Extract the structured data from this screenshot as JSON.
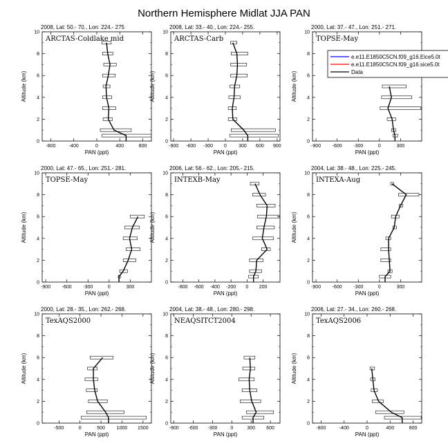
{
  "figure": {
    "title": "Northern Hemisphere Midlat JJA PAN"
  },
  "legend": {
    "entries": [
      {
        "label": "e.e11.E1850C5CN.f09_g16.Eice5.0t",
        "color": "#0000ff"
      },
      {
        "label": "e.e11.E1850C5CN.f09_g16.sice5.0t",
        "color": "#ff0000"
      },
      {
        "label": "Data",
        "color": "#000000"
      }
    ]
  },
  "chart_data": [
    {
      "type": "line",
      "header": "2008, Lat:  50.- 70., Lon: 224.- 275",
      "label": "ARCTAS-Coldlake mid",
      "xlabel": "PAN (ppt)",
      "ylabel": "Altitude (km)",
      "xlim": [
        -950,
        950
      ],
      "ylim": [
        0,
        10
      ],
      "xticks": [
        -800,
        -400,
        0,
        400,
        800
      ],
      "yticks": [
        0,
        2,
        4,
        6,
        8,
        10
      ],
      "altitude": [
        0.5,
        1,
        2,
        3,
        4,
        5,
        6,
        7,
        8,
        9
      ],
      "values": [
        510,
        300,
        200,
        210,
        170,
        160,
        200,
        230,
        190,
        170
      ],
      "range_low": [
        90,
        60,
        110,
        100,
        100,
        110,
        100,
        120,
        100,
        90
      ],
      "range_high": [
        950,
        600,
        270,
        330,
        260,
        230,
        320,
        340,
        280,
        250
      ]
    },
    {
      "type": "line",
      "header": "2008, Lat:  33.- 40., Lon: 224.- 255.",
      "label": "ARCTAS-Carb",
      "xlabel": "PAN (ppt)",
      "ylabel": "Altitude (km)",
      "xlim": [
        -950,
        950
      ],
      "ylim": [
        0,
        10
      ],
      "xticks": [
        -900,
        -600,
        -300,
        0,
        300,
        600,
        900
      ],
      "yticks": [
        0,
        2,
        4,
        6,
        8,
        10
      ],
      "altitude": [
        0.5,
        1,
        2,
        3,
        4,
        5,
        6,
        7,
        8,
        9
      ],
      "values": [
        390,
        320,
        130,
        120,
        150,
        160,
        200,
        210,
        200,
        130
      ],
      "range_low": [
        80,
        100,
        50,
        50,
        60,
        80,
        90,
        90,
        100,
        90
      ],
      "range_high": [
        920,
        870,
        200,
        190,
        260,
        250,
        380,
        370,
        390,
        200
      ]
    },
    {
      "type": "line",
      "header": "2000, Lat: 37.- 47., Lon: 251.- 271.",
      "label": "TOPSE-May",
      "xlabel": "PAN (ppt)",
      "ylabel": "Altitude (km)",
      "xlim": [
        -950,
        600
      ],
      "ylim": [
        0,
        10
      ],
      "xticks": [
        -900,
        -600,
        -300,
        0,
        300
      ],
      "yticks": [
        0,
        2,
        4,
        6,
        8,
        10
      ],
      "altitude": [
        0.5,
        1,
        2,
        3,
        4,
        5
      ],
      "values": [
        220,
        200,
        180,
        120,
        170,
        140
      ],
      "range_low": [
        190,
        170,
        110,
        10,
        30,
        40
      ],
      "range_high": [
        260,
        230,
        230,
        590,
        460,
        380
      ]
    },
    {
      "type": "line",
      "header": "2000, Lat: 47.- 65., Lon: 251.- 281.",
      "label": "TOPSE-May",
      "xlabel": "PAN (ppt)",
      "ylabel": "Altitude (km)",
      "xlim": [
        -950,
        600
      ],
      "ylim": [
        0,
        10
      ],
      "xticks": [
        -900,
        -600,
        -300,
        0,
        300
      ],
      "yticks": [
        0,
        2,
        4,
        6,
        8,
        10
      ],
      "altitude": [
        0.5,
        1,
        2,
        3,
        4,
        5,
        6
      ],
      "values": [
        140,
        200,
        270,
        320,
        290,
        330,
        410
      ],
      "range_low": [
        130,
        150,
        200,
        240,
        200,
        220,
        300
      ],
      "range_high": [
        160,
        260,
        380,
        440,
        400,
        430,
        500
      ]
    },
    {
      "type": "line",
      "header": "2006, Lat: 56.- 62., Lon: 205.- 215.",
      "label": "INTEXB-May",
      "xlabel": "PAN (ppt)",
      "ylabel": "Altitude (km)",
      "xlim": [
        -950,
        410
      ],
      "ylim": [
        0,
        10
      ],
      "xticks": [
        -800,
        -600,
        -400,
        -200,
        0,
        200
      ],
      "yticks": [
        0,
        2,
        4,
        6,
        8,
        10
      ],
      "altitude": [
        0.5,
        1,
        2,
        3,
        4,
        5,
        6,
        7,
        8,
        9
      ],
      "values": [
        80,
        110,
        120,
        250,
        190,
        210,
        240,
        250,
        160,
        100
      ],
      "range_low": [
        20,
        30,
        30,
        180,
        70,
        120,
        130,
        120,
        70,
        40
      ],
      "range_high": [
        140,
        180,
        200,
        290,
        330,
        340,
        400,
        350,
        230,
        150
      ]
    },
    {
      "type": "line",
      "header": "2004, Lat: 38.- 48., Lon: 225.- 245.",
      "label": "INTEXA-Aug",
      "xlabel": "PAN (ppt)",
      "ylabel": "Altitude (km)",
      "xlim": [
        -950,
        600
      ],
      "ylim": [
        0,
        10
      ],
      "xticks": [
        -900,
        -600,
        -300,
        0,
        300
      ],
      "yticks": [
        0,
        2,
        4,
        6,
        8,
        10
      ],
      "altitude": [
        0.5,
        1,
        2,
        3,
        4,
        5,
        6,
        7,
        8,
        9
      ],
      "values": [
        80,
        150,
        140,
        130,
        130,
        210,
        230,
        300,
        380,
        180
      ],
      "range_low": [
        0,
        120,
        20,
        20,
        90,
        190,
        170,
        280,
        270,
        160
      ],
      "range_high": [
        160,
        180,
        160,
        160,
        160,
        240,
        280,
        330,
        560,
        200
      ]
    },
    {
      "type": "line",
      "header": "2000, Lat: 28.- 35., Lon: 262.- 268.",
      "label": "TexAQS2000",
      "xlabel": "PAN (ppt)",
      "ylabel": "Altitude (km)",
      "xlim": [
        -900,
        1700
      ],
      "ylim": [
        0,
        10
      ],
      "xticks": [
        -500,
        0,
        500,
        1000,
        1500
      ],
      "yticks": [
        0,
        2,
        4,
        6,
        8,
        10
      ],
      "altitude": [
        0.5,
        1,
        2,
        3,
        4,
        5,
        6
      ],
      "values": [
        680,
        610,
        420,
        350,
        320,
        320,
        540
      ],
      "range_low": [
        30,
        160,
        200,
        150,
        120,
        180,
        240
      ],
      "range_high": [
        1580,
        1050,
        650,
        410,
        420,
        410,
        790
      ]
    },
    {
      "type": "line",
      "header": "2004, Lat: 38.- 48., Lon: 280.- 298.",
      "label": "NEAQSITCT2004",
      "xlabel": "PAN (ppt)",
      "ylabel": "Altitude (km)",
      "xlim": [
        -950,
        750
      ],
      "ylim": [
        0,
        10
      ],
      "xticks": [
        -900,
        -600,
        -300,
        0,
        300,
        600
      ],
      "yticks": [
        0,
        2,
        4,
        6,
        8,
        10
      ],
      "altitude": [
        0.5,
        1,
        2,
        3,
        4,
        5,
        6
      ],
      "values": [
        330,
        380,
        310,
        280,
        270,
        290,
        280
      ],
      "range_low": [
        160,
        230,
        130,
        160,
        110,
        170,
        190
      ],
      "range_high": [
        500,
        650,
        450,
        390,
        350,
        360,
        360
      ]
    },
    {
      "type": "line",
      "header": "2006, Lat: 27.- 34., Lon: 260.- 268.",
      "label": "TexAQS2006",
      "xlabel": "PAN (ppt)",
      "ylabel": "Altitude (km)",
      "xlim": [
        -950,
        950
      ],
      "ylim": [
        0,
        10
      ],
      "xticks": [
        -800,
        -400,
        0,
        400,
        800
      ],
      "yticks": [
        0,
        2,
        4,
        6,
        8,
        10
      ],
      "altitude": [
        0.5,
        1,
        2,
        3,
        4,
        5
      ],
      "values": [
        610,
        420,
        200,
        120,
        100,
        80
      ],
      "range_low": [
        300,
        150,
        90,
        70,
        60,
        50
      ],
      "range_high": [
        940,
        640,
        280,
        180,
        140,
        130
      ]
    }
  ]
}
